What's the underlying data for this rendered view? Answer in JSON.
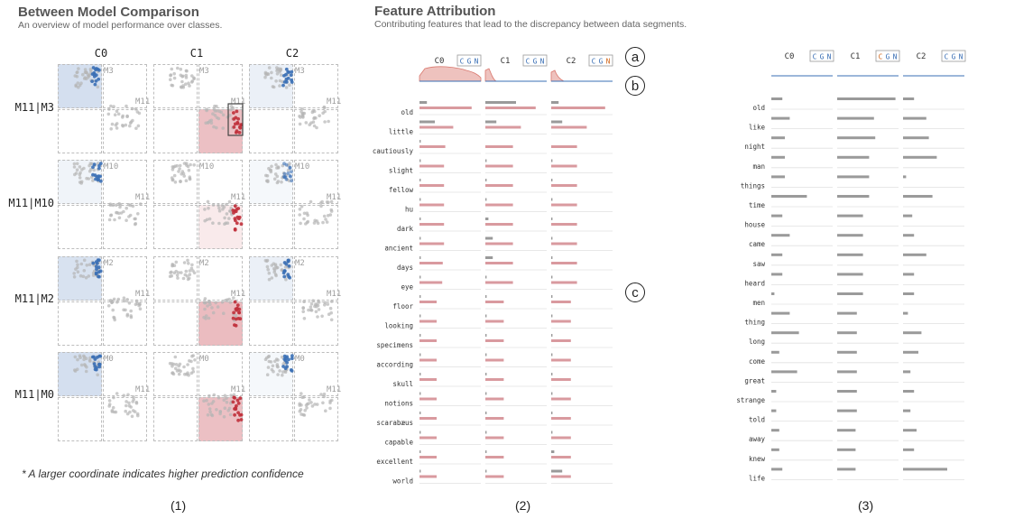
{
  "panel1": {
    "title": "Between Model Comparison",
    "subtitle": "An overview of model performance over classes.",
    "columns": [
      "C0",
      "C1",
      "C2"
    ],
    "rows": [
      {
        "label": "M11|M3",
        "model": "M3"
      },
      {
        "label": "M11|M10",
        "model": "M10"
      },
      {
        "label": "M11|M2",
        "model": "M2"
      },
      {
        "label": "M11|M0",
        "model": "M0"
      }
    ],
    "reference_model": "M11",
    "footnote": "* A larger coordinate indicates higher prediction confidence",
    "number": "(1)",
    "colors": {
      "blue": "#3a6fb5",
      "red": "#c0303b",
      "gray": "#b5b5b5"
    }
  },
  "panel2": {
    "title": "Feature Attribution",
    "subtitle": "Contributing features that lead to the discrepancy between data segments.",
    "columns": [
      "C0",
      "C1",
      "C2"
    ],
    "toggle": [
      "C",
      "G",
      "N"
    ],
    "number": "(2)",
    "annotations": [
      "a",
      "b",
      "c"
    ]
  },
  "panel3": {
    "columns": [
      "C0",
      "C1",
      "C2"
    ],
    "toggle": [
      "C",
      "G",
      "N"
    ],
    "number": "(3)"
  },
  "chart_data": [
    {
      "type": "bar",
      "panel": "(2)",
      "series_colors": {
        "gray": "#9a9a9a",
        "pink": "#d99a9f"
      },
      "categories": [
        "old",
        "little",
        "cautiously",
        "slight",
        "fellow",
        "hu",
        "dark",
        "ancient",
        "days",
        "eye",
        "floor",
        "looking",
        "specimens",
        "according",
        "skull",
        "notions",
        "scarabæus",
        "capable",
        "excellent",
        "world"
      ],
      "C0_gray": [
        0.12,
        0.25,
        0.02,
        0.02,
        0.02,
        0.02,
        0.02,
        0.02,
        0.02,
        0.02,
        0.02,
        0.02,
        0.02,
        0.02,
        0.02,
        0.02,
        0.02,
        0.02,
        0.02,
        0.02
      ],
      "C0_pink": [
        0.85,
        0.55,
        0.42,
        0.4,
        0.4,
        0.4,
        0.4,
        0.4,
        0.38,
        0.37,
        0.28,
        0.28,
        0.28,
        0.28,
        0.28,
        0.28,
        0.28,
        0.28,
        0.28,
        0.28
      ],
      "C1_gray": [
        0.5,
        0.18,
        0.0,
        0.02,
        0.02,
        0.02,
        0.05,
        0.12,
        0.12,
        0.02,
        0.02,
        0.02,
        0.02,
        0.02,
        0.02,
        0.02,
        0.02,
        0.02,
        0.02,
        0.02
      ],
      "C1_pink": [
        0.82,
        0.58,
        0.45,
        0.45,
        0.45,
        0.45,
        0.45,
        0.45,
        0.45,
        0.45,
        0.3,
        0.3,
        0.3,
        0.3,
        0.3,
        0.3,
        0.3,
        0.3,
        0.3,
        0.3
      ],
      "C2_gray": [
        0.12,
        0.18,
        0.0,
        0.02,
        0.02,
        0.02,
        0.02,
        0.02,
        0.02,
        0.02,
        0.02,
        0.02,
        0.02,
        0.02,
        0.02,
        0.02,
        0.02,
        0.02,
        0.05,
        0.18
      ],
      "C2_pink": [
        0.88,
        0.58,
        0.42,
        0.42,
        0.42,
        0.42,
        0.42,
        0.42,
        0.42,
        0.42,
        0.32,
        0.32,
        0.32,
        0.32,
        0.32,
        0.32,
        0.32,
        0.32,
        0.32,
        0.32
      ]
    },
    {
      "type": "bar",
      "panel": "(3)",
      "categories": [
        "old",
        "like",
        "night",
        "man",
        "things",
        "time",
        "house",
        "came",
        "saw",
        "heard",
        "men",
        "thing",
        "long",
        "come",
        "great",
        "strange",
        "told",
        "away",
        "knew",
        "life"
      ],
      "C0": [
        0.18,
        0.3,
        0.22,
        0.22,
        0.22,
        0.58,
        0.18,
        0.3,
        0.18,
        0.18,
        0.05,
        0.3,
        0.45,
        0.13,
        0.42,
        0.08,
        0.08,
        0.13,
        0.13,
        0.18
      ],
      "C1": [
        0.95,
        0.6,
        0.62,
        0.52,
        0.52,
        0.52,
        0.42,
        0.42,
        0.42,
        0.42,
        0.42,
        0.32,
        0.32,
        0.32,
        0.32,
        0.32,
        0.32,
        0.3,
        0.3,
        0.3
      ],
      "C2": [
        0.18,
        0.38,
        0.42,
        0.55,
        0.05,
        0.48,
        0.15,
        0.18,
        0.38,
        0.18,
        0.18,
        0.08,
        0.3,
        0.25,
        0.12,
        0.18,
        0.12,
        0.22,
        0.18,
        0.72
      ]
    }
  ]
}
